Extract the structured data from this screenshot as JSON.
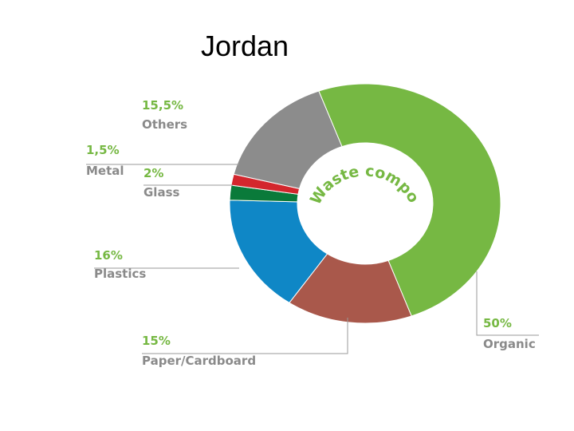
{
  "chart_data": {
    "type": "donut",
    "title": "Jordan",
    "center_text": "Waste composition",
    "categories": [
      "Organic",
      "Paper/Cardboard",
      "Plastics",
      "Glass",
      "Metal",
      "Others"
    ],
    "values": [
      50,
      15,
      16,
      2,
      1.5,
      15.5
    ],
    "value_labels": [
      "50%",
      "15%",
      "16%",
      "2%",
      "1,5%",
      "15,5%"
    ],
    "colors": [
      "#76b843",
      "#a9584b",
      "#0f87c6",
      "#0a7a3a",
      "#d3262d",
      "#8c8c8c"
    ]
  }
}
